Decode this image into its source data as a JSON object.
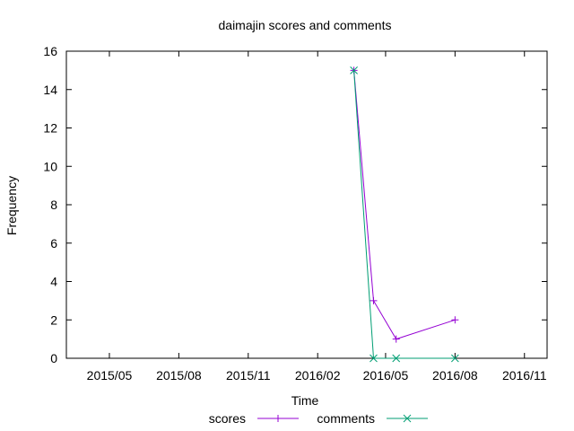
{
  "chart_data": {
    "type": "line",
    "title": "daimajin scores and comments",
    "xlabel": "Time",
    "ylabel": "Frequency",
    "xlim": [
      "2015-03-05",
      "2016-12-01"
    ],
    "ylim": [
      0,
      16
    ],
    "x_ticks": [
      "2015/05",
      "2015/08",
      "2015/11",
      "2016/02",
      "2016/05",
      "2016/08",
      "2016/11"
    ],
    "y_ticks": [
      0,
      2,
      4,
      6,
      8,
      10,
      12,
      14,
      16
    ],
    "grid": false,
    "legend_position": "bottom-center",
    "series": [
      {
        "name": "scores",
        "color": "#9400d3",
        "marker": "plus",
        "x": [
          "2016-03-20",
          "2016-04-15",
          "2016-05-15",
          "2016-08-01"
        ],
        "y": [
          15,
          3,
          1,
          2
        ]
      },
      {
        "name": "comments",
        "color": "#009e73",
        "marker": "cross",
        "x": [
          "2016-03-20",
          "2016-04-15",
          "2016-05-15",
          "2016-08-01"
        ],
        "y": [
          15,
          0,
          0,
          0
        ]
      }
    ]
  }
}
